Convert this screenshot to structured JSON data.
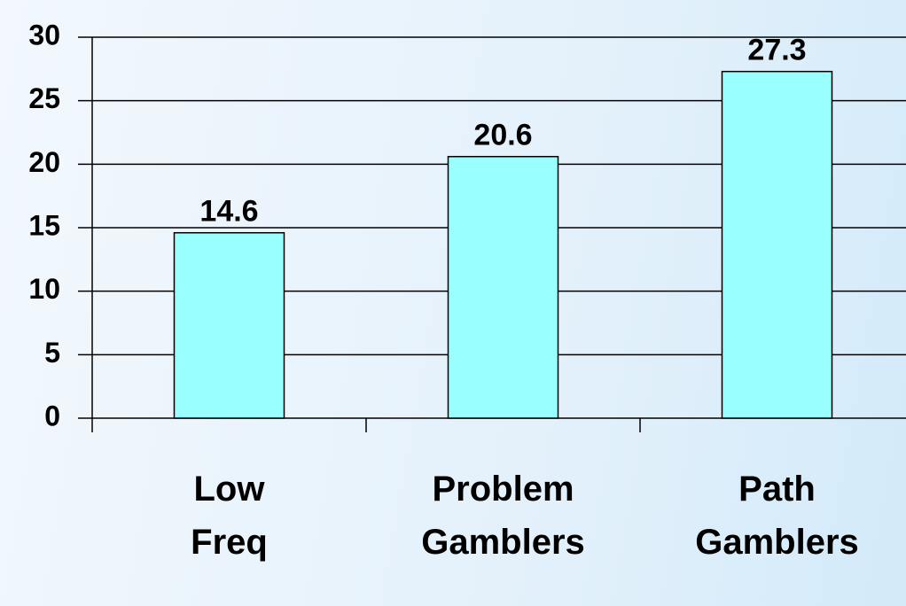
{
  "chart_data": {
    "type": "bar",
    "categories": [
      "Low Freq",
      "Problem Gamblers",
      "Path Gamblers"
    ],
    "values": [
      14.6,
      20.6,
      27.3
    ],
    "color": "#99ffff",
    "ylim": [
      0,
      30
    ],
    "yticks": [
      0,
      5,
      10,
      15,
      20,
      25,
      30
    ],
    "grid": true
  }
}
